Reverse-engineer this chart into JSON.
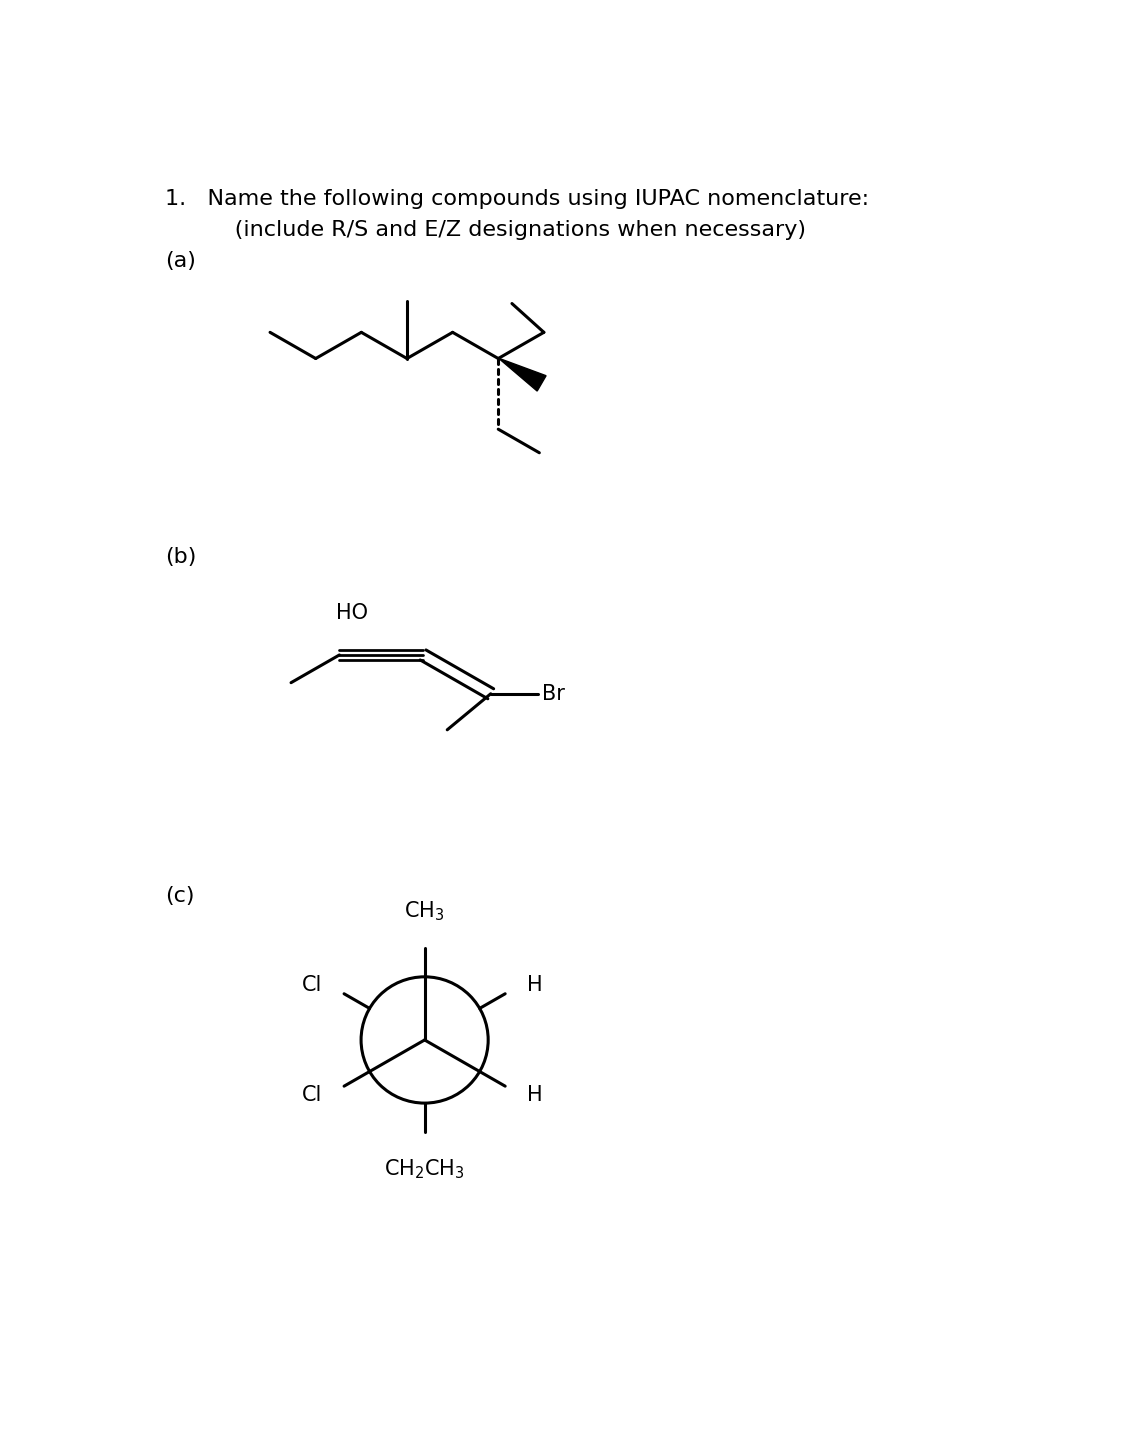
{
  "title_line1": "1.   Name the following compounds using IUPAC nomenclature:",
  "title_line2": "      (include R/S and E/Z designations when necessary)",
  "label_a": "(a)",
  "label_b": "(b)",
  "label_c": "(c)",
  "bg_color": "#ffffff",
  "line_color": "#000000",
  "line_width": 2.2,
  "font_size_title": 16,
  "font_size_label": 16,
  "font_size_chem": 15
}
